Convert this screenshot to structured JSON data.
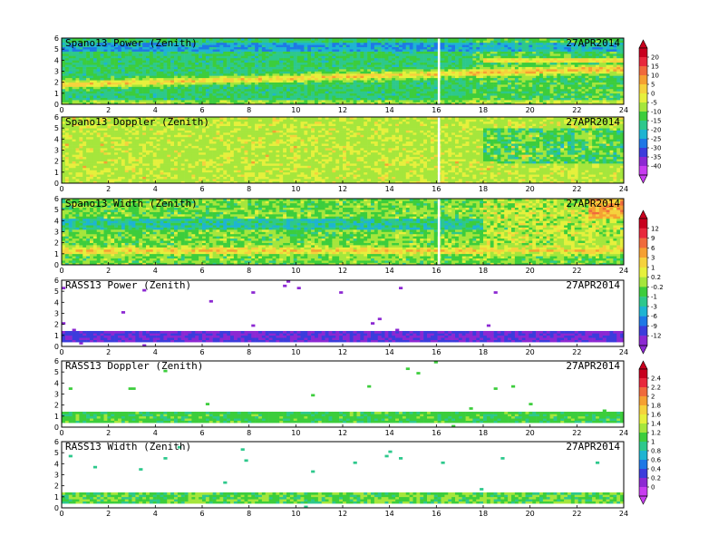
{
  "chart_data": [
    {
      "type": "heatmap",
      "title": "Spano13 Power (Zenith)",
      "date": "27APR2014",
      "x_ticks": [
        "0",
        "2",
        "4",
        "6",
        "8",
        "10",
        "12",
        "14",
        "16",
        "18",
        "20",
        "22",
        "24"
      ],
      "y_ticks": [
        "0",
        "1",
        "2",
        "3",
        "4",
        "5",
        "6"
      ],
      "xlim": [
        0,
        24
      ],
      "ylim": [
        0,
        6
      ],
      "colorbar": "A",
      "field": "spano_power",
      "gap_x": 16.1
    },
    {
      "type": "heatmap",
      "title": "Spano13 Doppler (Zenith)",
      "date": "27APR2014",
      "x_ticks": [
        "0",
        "2",
        "4",
        "6",
        "8",
        "10",
        "12",
        "14",
        "16",
        "18",
        "20",
        "22",
        "24"
      ],
      "y_ticks": [
        "0",
        "1",
        "2",
        "3",
        "4",
        "5",
        "6"
      ],
      "xlim": [
        0,
        24
      ],
      "ylim": [
        0,
        6
      ],
      "colorbar": "A",
      "field": "spano_doppler",
      "gap_x": 16.1
    },
    {
      "type": "heatmap",
      "title": "Spano13 Width (Zenith)",
      "date": "27APR2014",
      "x_ticks": [
        "0",
        "2",
        "4",
        "6",
        "8",
        "10",
        "12",
        "14",
        "16",
        "18",
        "20",
        "22",
        "24"
      ],
      "y_ticks": [
        "0",
        "1",
        "2",
        "3",
        "4",
        "5",
        "6"
      ],
      "xlim": [
        0,
        24
      ],
      "ylim": [
        0,
        6
      ],
      "colorbar": "B",
      "field": "spano_width",
      "gap_x": 16.1
    },
    {
      "type": "heatmap",
      "title": "RASS13 Power (Zenith)",
      "date": "27APR2014",
      "x_ticks": [
        "0",
        "2",
        "4",
        "6",
        "8",
        "10",
        "12",
        "14",
        "16",
        "18",
        "20",
        "22",
        "24"
      ],
      "y_ticks": [
        "0",
        "1",
        "2",
        "3",
        "4",
        "5",
        "6"
      ],
      "xlim": [
        0,
        24
      ],
      "ylim": [
        0,
        6
      ],
      "colorbar": "B",
      "field": "rass_power"
    },
    {
      "type": "heatmap",
      "title": "RASS13 Doppler (Zenith)",
      "date": "27APR2014",
      "x_ticks": [
        "0",
        "2",
        "4",
        "6",
        "8",
        "10",
        "12",
        "14",
        "16",
        "18",
        "20",
        "22",
        "24"
      ],
      "y_ticks": [
        "0",
        "1",
        "2",
        "3",
        "4",
        "5",
        "6"
      ],
      "xlim": [
        0,
        24
      ],
      "ylim": [
        0,
        6
      ],
      "colorbar": "C",
      "field": "rass_doppler"
    },
    {
      "type": "heatmap",
      "title": "RASS13 Width (Zenith)",
      "date": "27APR2014",
      "x_ticks": [
        "0",
        "2",
        "4",
        "6",
        "8",
        "10",
        "12",
        "14",
        "16",
        "18",
        "20",
        "22",
        "24"
      ],
      "y_ticks": [
        "0",
        "1",
        "2",
        "3",
        "4",
        "5",
        "6"
      ],
      "xlim": [
        0,
        24
      ],
      "ylim": [
        0,
        6
      ],
      "colorbar": "C",
      "field": "rass_width"
    }
  ],
  "colorbars": {
    "A": {
      "labels": [
        "20",
        "15",
        "10",
        "5",
        "0",
        "-5",
        "-10",
        "-15",
        "-20",
        "-25",
        "-30",
        "-35",
        "-40"
      ],
      "colors": [
        "#c8001e",
        "#e8283c",
        "#f06a3c",
        "#f5a032",
        "#f5d23c",
        "#e6f03c",
        "#a5e63c",
        "#3ccd3c",
        "#2dc88c",
        "#1eb4d2",
        "#1e78e6",
        "#3c3cdc",
        "#8c28d2",
        "#c83cf0"
      ]
    },
    "B": {
      "labels": [
        "12",
        "9",
        "6",
        "3",
        "1",
        "0.2",
        "-0.2",
        "-1",
        "-3",
        "-6",
        "-9",
        "-12"
      ],
      "colors": [
        "#c8001e",
        "#e8283c",
        "#f06a3c",
        "#f5a032",
        "#f5d23c",
        "#e6f03c",
        "#a5e63c",
        "#3ccd3c",
        "#2dc88c",
        "#1eb4d2",
        "#1e78e6",
        "#3c3cdc",
        "#8c28d2"
      ]
    },
    "C": {
      "labels": [
        "2.4",
        "2.2",
        "2",
        "1.8",
        "1.6",
        "1.4",
        "1.2",
        "1",
        "0.8",
        "0.6",
        "0.4",
        "0.2",
        "0"
      ],
      "colors": [
        "#c8001e",
        "#e8283c",
        "#f06a3c",
        "#f5a032",
        "#f5d23c",
        "#e6f03c",
        "#a5e63c",
        "#3ccd3c",
        "#2dc88c",
        "#1eb4d2",
        "#1e78e6",
        "#3c3cdc",
        "#8c28d2",
        "#c83cf0"
      ]
    }
  }
}
